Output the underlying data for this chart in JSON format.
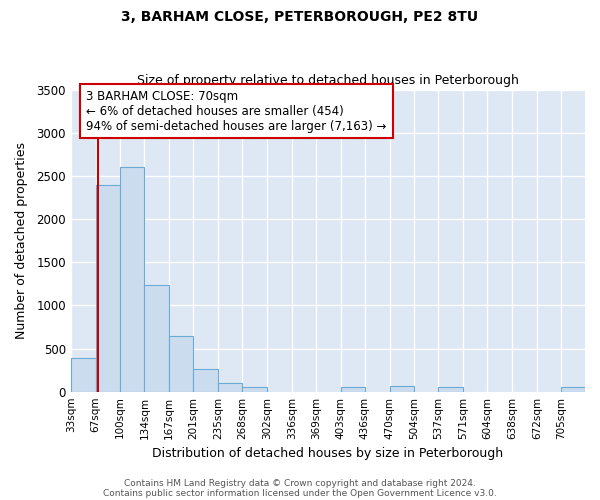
{
  "title": "3, BARHAM CLOSE, PETERBOROUGH, PE2 8TU",
  "subtitle": "Size of property relative to detached houses in Peterborough",
  "xlabel": "Distribution of detached houses by size in Peterborough",
  "ylabel": "Number of detached properties",
  "bar_labels": [
    "33sqm",
    "67sqm",
    "100sqm",
    "134sqm",
    "167sqm",
    "201sqm",
    "235sqm",
    "268sqm",
    "302sqm",
    "336sqm",
    "369sqm",
    "403sqm",
    "436sqm",
    "470sqm",
    "504sqm",
    "537sqm",
    "571sqm",
    "604sqm",
    "638sqm",
    "672sqm",
    "705sqm"
  ],
  "bar_values": [
    390,
    2400,
    2600,
    1240,
    640,
    260,
    100,
    55,
    0,
    0,
    0,
    50,
    0,
    65,
    0,
    50,
    0,
    0,
    0,
    0,
    50
  ],
  "bar_color": "#ccdcef",
  "bar_edgecolor": "#6aaad4",
  "property_line_x": 70,
  "property_line_color": "#cc0000",
  "ylim": [
    0,
    3500
  ],
  "yticks": [
    0,
    500,
    1000,
    1500,
    2000,
    2500,
    3000,
    3500
  ],
  "annotation_text": "3 BARHAM CLOSE: 70sqm\n← 6% of detached houses are smaller (454)\n94% of semi-detached houses are larger (7,163) →",
  "annotation_box_edgecolor": "#cc0000",
  "annotation_box_facecolor": "#ffffff",
  "footer_line1": "Contains HM Land Registry data © Crown copyright and database right 2024.",
  "footer_line2": "Contains public sector information licensed under the Open Government Licence v3.0.",
  "plot_bg_color": "#dde8f4",
  "fig_bg_color": "#ffffff",
  "grid_color": "#ffffff",
  "edges": [
    33,
    67,
    100,
    134,
    167,
    201,
    235,
    268,
    302,
    336,
    369,
    403,
    436,
    470,
    504,
    537,
    571,
    604,
    638,
    672,
    705,
    738
  ]
}
